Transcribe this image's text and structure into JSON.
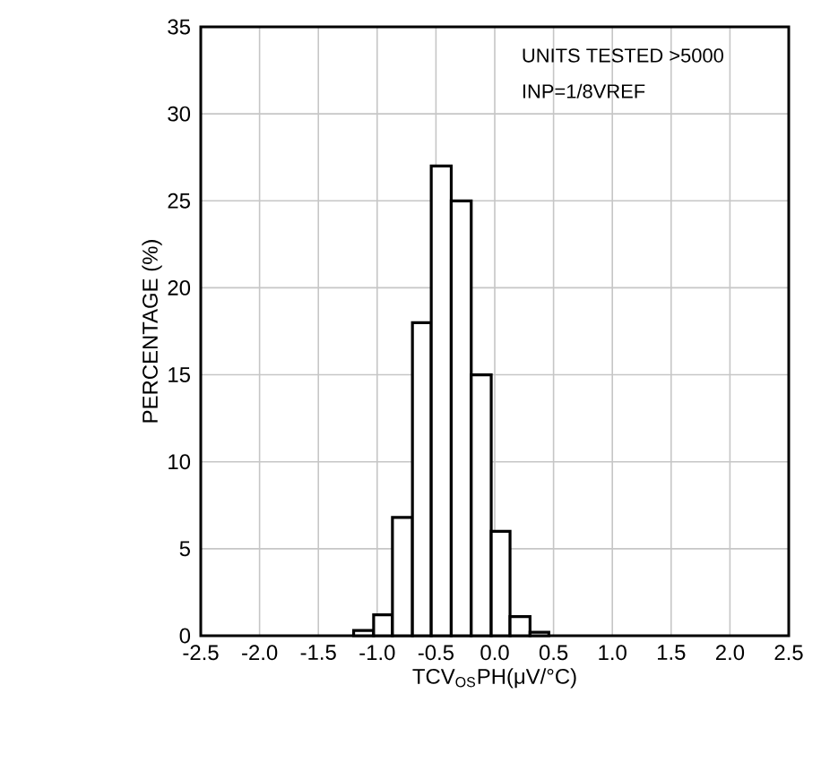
{
  "chart_data": {
    "type": "histogram",
    "xlabel": "TCV$_{OS}$PH(μV/°C)",
    "ylabel": "PERCENTAGE (%)",
    "annotations": [
      "UNITS TESTED >5000",
      "INP=1/8VREF"
    ],
    "bins": [
      -1.2,
      -1.03,
      -0.87,
      -0.7,
      -0.54,
      -0.37,
      -0.2,
      -0.03,
      0.13,
      0.3,
      0.46
    ],
    "values": [
      0.3,
      1.2,
      6.8,
      18,
      27,
      25,
      15,
      6,
      1.1,
      0.2
    ],
    "color": "#000000",
    "xlim": [
      -2.5,
      2.5
    ],
    "xticks": [
      {
        "value": -2.5,
        "label": "-2.5"
      },
      {
        "value": -2.0,
        "label": "-2.0"
      },
      {
        "value": -1.5,
        "label": "-1.5"
      },
      {
        "value": -1.0,
        "label": "-1.0"
      },
      {
        "value": -0.5,
        "label": "-0.5"
      },
      {
        "value": 0,
        "label": "0.0"
      },
      {
        "value": 0.5,
        "label": "0.5"
      },
      {
        "value": 1.0,
        "label": "1.0"
      },
      {
        "value": 1.5,
        "label": "1.5"
      },
      {
        "value": 2.0,
        "label": "2.0"
      },
      {
        "value": 2.5,
        "label": "2.5"
      }
    ],
    "ylim": [
      0,
      35
    ],
    "yticks": [
      0,
      5,
      10,
      15,
      20,
      25,
      30,
      35
    ],
    "grid": true
  }
}
